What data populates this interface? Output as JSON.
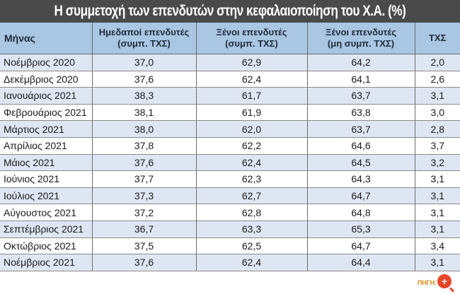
{
  "title": "Η συμμετοχή των επενδυτών στην κεφαλαιοποίηση του Χ.Α. (%)",
  "table": {
    "headers": [
      {
        "line1": "Μήνας",
        "line2": ""
      },
      {
        "line1": "Ημεδαποί επενδυτές",
        "line2": "(συμπ. ΤΧΣ)"
      },
      {
        "line1": "Ξένοι επενδυτές",
        "line2": "(συμπ. ΤΧΣ)"
      },
      {
        "line1": "Ξένοι επενδυτές",
        "line2": "(μη συμπ. ΤΧΣ)"
      },
      {
        "line1": "ΤΧΣ",
        "line2": ""
      }
    ],
    "rows": [
      [
        "Νοέμβριος 2020",
        "37,0",
        "62,9",
        "64,2",
        "2,0"
      ],
      [
        "Δεκέμβριος 2020",
        "37,6",
        "62,4",
        "64,1",
        "2,6"
      ],
      [
        "Ιανουάριος 2021",
        "38,3",
        "61,7",
        "63,7",
        "3,1"
      ],
      [
        "Φεβρουάριος 2021",
        "38,1",
        "61,9",
        "63,8",
        "3,0"
      ],
      [
        "Μάρτιος 2021",
        "38,0",
        "62,0",
        "63,7",
        "2,8"
      ],
      [
        "Απρίλιος 2021",
        "37,8",
        "62,2",
        "64,6",
        "3,7"
      ],
      [
        "Μάιος 2021",
        "37,6",
        "62,4",
        "64,5",
        "3,2"
      ],
      [
        "Ιούνιος 2021",
        "37,7",
        "62,3",
        "64,3",
        "3,1"
      ],
      [
        "Ιούλιος 2021",
        "37,3",
        "62,7",
        "64,7",
        "3,1"
      ],
      [
        "Αύγουστος 2021",
        "37,2",
        "62,8",
        "64,8",
        "3,1"
      ],
      [
        "Σεπτέμβριος 2021",
        "36,7",
        "63,3",
        "65,3",
        "3,1"
      ],
      [
        "Οκτώβριος 2021",
        "37,5",
        "62,5",
        "64,7",
        "3,4"
      ],
      [
        "Νοέμβριος 2021",
        "37,6",
        "62,4",
        "64,4",
        "3,1"
      ]
    ]
  },
  "source": "ΠΗΓΗ: ΧΑ",
  "zoom_icon": "zoom-in-icon",
  "colors": {
    "title_bg": "#4a4a4a",
    "header_bg": "#a9c6e3",
    "row_alt_bg": "#dfe6f3",
    "source_color": "#e08a1e",
    "zoom_badge": "#e8462a"
  }
}
